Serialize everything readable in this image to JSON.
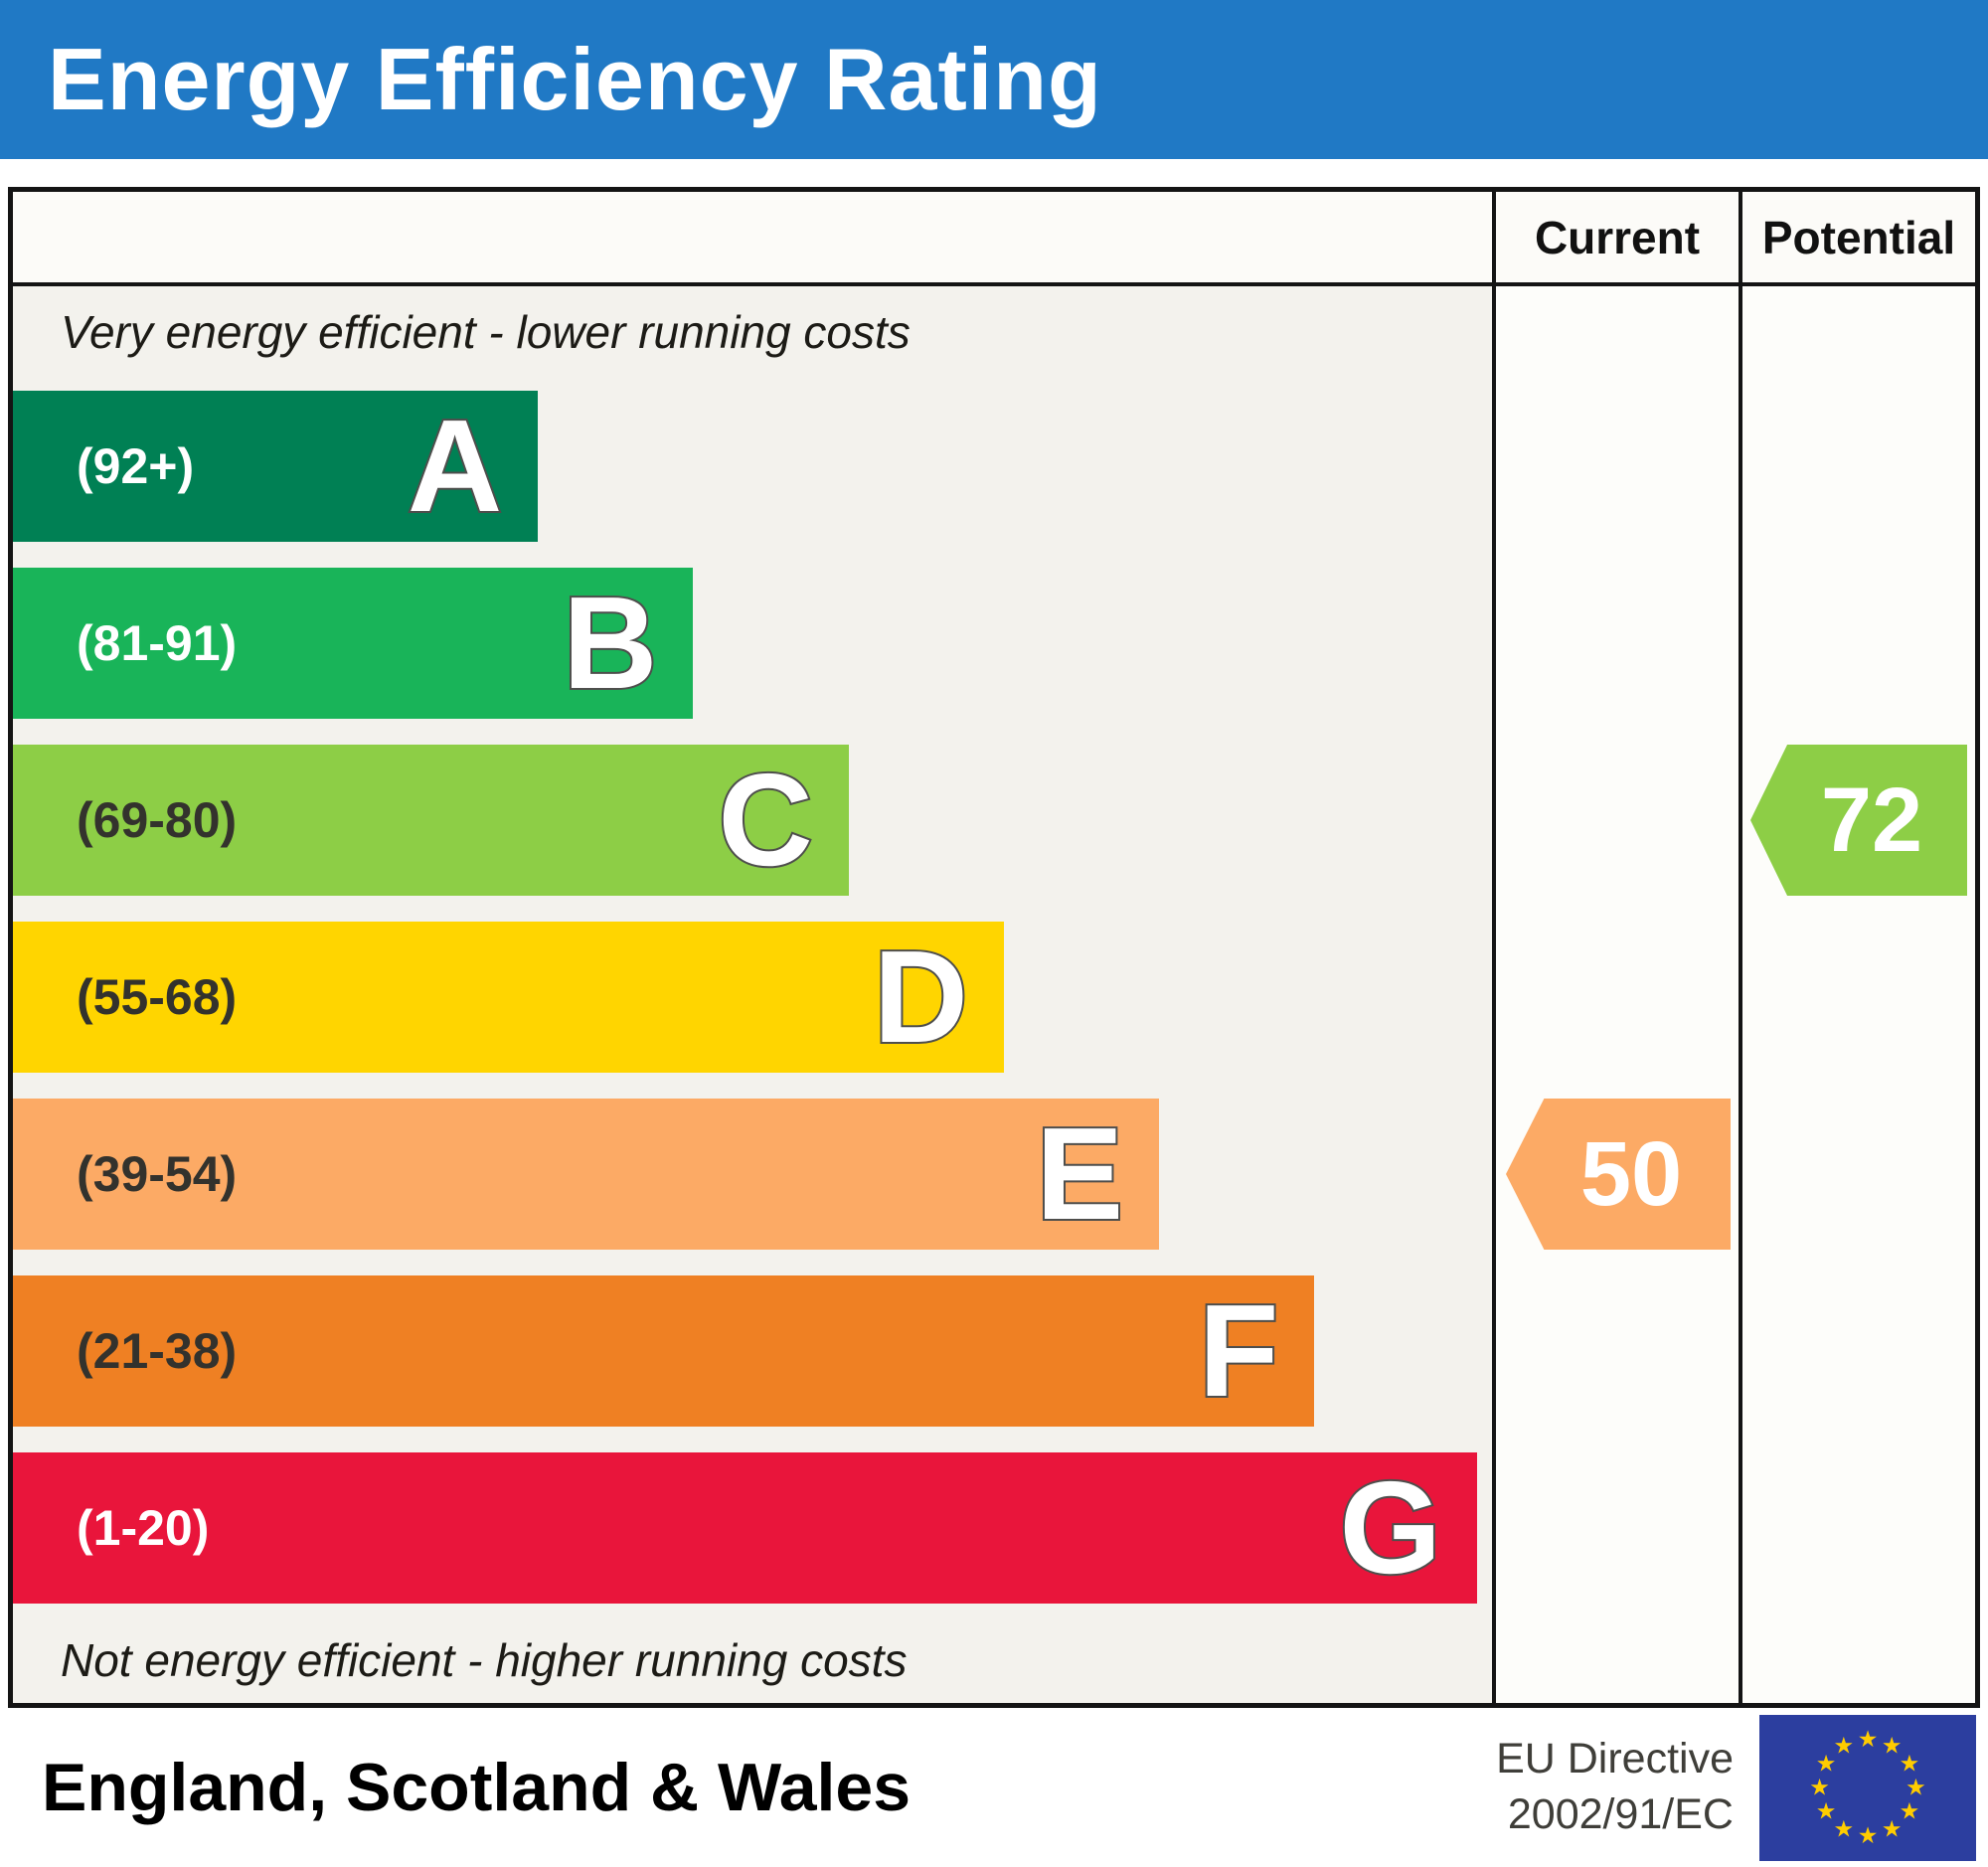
{
  "header": {
    "title": "Energy Efficiency Rating"
  },
  "table": {
    "columns": {
      "current": "Current",
      "potential": "Potential"
    },
    "top_note": "Very energy efficient - lower running costs",
    "bottom_note": "Not energy efficient - higher running costs",
    "bands": [
      {
        "letter": "A",
        "range": "(92+)",
        "color": "#008054",
        "range_color": "#ffffff",
        "width_pct": 35.5
      },
      {
        "letter": "B",
        "range": "(81-91)",
        "color": "#19b459",
        "range_color": "#ffffff",
        "width_pct": 46
      },
      {
        "letter": "C",
        "range": "(69-80)",
        "color": "#8dce46",
        "range_color": "#33322d",
        "width_pct": 56.5
      },
      {
        "letter": "D",
        "range": "(55-68)",
        "color": "#ffd500",
        "range_color": "#33322d",
        "width_pct": 67
      },
      {
        "letter": "E",
        "range": "(39-54)",
        "color": "#fcaa65",
        "range_color": "#33322d",
        "width_pct": 77.5
      },
      {
        "letter": "F",
        "range": "(21-38)",
        "color": "#ef8023",
        "range_color": "#33322d",
        "width_pct": 88
      },
      {
        "letter": "G",
        "range": "(1-20)",
        "color": "#e9153b",
        "range_color": "#ffffff",
        "width_pct": 99
      }
    ],
    "current": {
      "value": "50",
      "band": "E",
      "color": "#fcaa65"
    },
    "potential": {
      "value": "72",
      "band": "C",
      "color": "#8dce46"
    }
  },
  "footer": {
    "region": "England, Scotland & Wales",
    "directive": [
      "EU Directive",
      "2002/91/EC"
    ],
    "eu_flag": {
      "background": "#2c3e9f",
      "star_color": "#ffcc00"
    }
  },
  "chart_data": {
    "type": "bar",
    "title": "Energy Efficiency Rating",
    "categories": [
      "A",
      "B",
      "C",
      "D",
      "E",
      "F",
      "G"
    ],
    "band_ranges": [
      "92+",
      "81-91",
      "69-80",
      "55-68",
      "39-54",
      "21-38",
      "1-20"
    ],
    "band_colors": [
      "#008054",
      "#19b459",
      "#8dce46",
      "#ffd500",
      "#fcaa65",
      "#ef8023",
      "#e9153b"
    ],
    "bar_width_pct": [
      35.5,
      46,
      56.5,
      67,
      77.5,
      88,
      99
    ],
    "scale_min": 1,
    "scale_max": 100,
    "current_rating": 50,
    "current_band": "E",
    "potential_rating": 72,
    "potential_band": "C",
    "top_note": "Very energy efficient - lower running costs",
    "bottom_note": "Not energy efficient - higher running costs",
    "region": "England, Scotland & Wales",
    "directive": "EU Directive 2002/91/EC"
  }
}
